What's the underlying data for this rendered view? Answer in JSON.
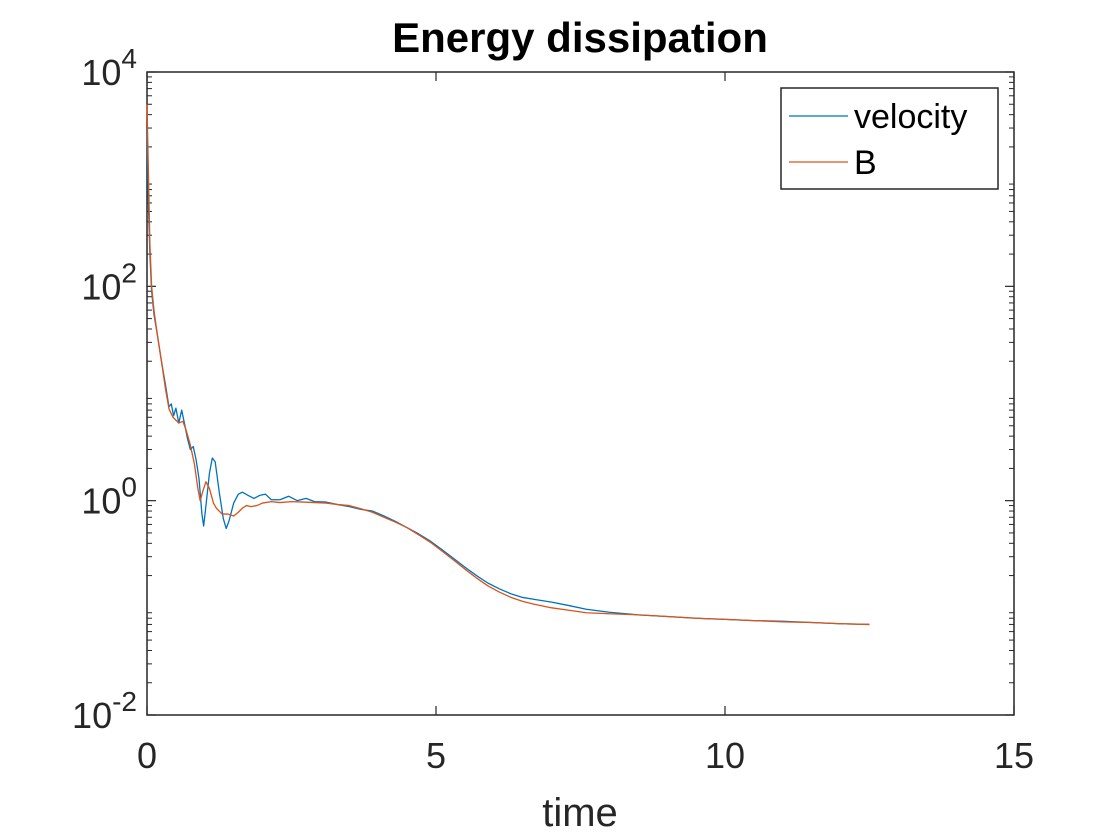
{
  "chart_data": {
    "type": "line",
    "title": "Energy dissipation",
    "xlabel": "time",
    "ylabel": "",
    "xlim": [
      0,
      15
    ],
    "ylim": [
      0.01,
      10000
    ],
    "yscale": "log",
    "grid": false,
    "legend_position": "top-right",
    "x_ticks": [
      {
        "value": 0,
        "label": "0"
      },
      {
        "value": 5,
        "label": "5"
      },
      {
        "value": 10,
        "label": "10"
      },
      {
        "value": 15,
        "label": "15"
      }
    ],
    "y_ticks": [
      {
        "value": 0.01,
        "base": "10",
        "exp": "-2"
      },
      {
        "value": 1,
        "base": "10",
        "exp": "0"
      },
      {
        "value": 100,
        "base": "10",
        "exp": "2"
      },
      {
        "value": 10000,
        "base": "10",
        "exp": "4"
      }
    ],
    "series": [
      {
        "name": "velocity",
        "color": "#0072BD",
        "points": [
          [
            0,
            3000
          ],
          [
            0.02,
            700
          ],
          [
            0.05,
            200
          ],
          [
            0.08,
            90
          ],
          [
            0.12,
            55
          ],
          [
            0.18,
            35
          ],
          [
            0.25,
            20
          ],
          [
            0.32,
            12
          ],
          [
            0.38,
            7.5
          ],
          [
            0.42,
            8
          ],
          [
            0.46,
            6.2
          ],
          [
            0.5,
            7.3
          ],
          [
            0.55,
            5.3
          ],
          [
            0.6,
            7
          ],
          [
            0.65,
            5.2
          ],
          [
            0.7,
            3.8
          ],
          [
            0.75,
            3.0
          ],
          [
            0.8,
            3.2
          ],
          [
            0.85,
            2.4
          ],
          [
            0.9,
            1.6
          ],
          [
            0.95,
            0.75
          ],
          [
            0.98,
            0.58
          ],
          [
            1.02,
            0.9
          ],
          [
            1.08,
            1.8
          ],
          [
            1.13,
            2.5
          ],
          [
            1.18,
            2.3
          ],
          [
            1.25,
            1.2
          ],
          [
            1.32,
            0.68
          ],
          [
            1.37,
            0.55
          ],
          [
            1.42,
            0.65
          ],
          [
            1.5,
            0.95
          ],
          [
            1.58,
            1.15
          ],
          [
            1.65,
            1.2
          ],
          [
            1.75,
            1.12
          ],
          [
            1.85,
            1.05
          ],
          [
            1.95,
            1.12
          ],
          [
            2.05,
            1.15
          ],
          [
            2.15,
            1.02
          ],
          [
            2.3,
            1.02
          ],
          [
            2.45,
            1.1
          ],
          [
            2.6,
            1.0
          ],
          [
            2.75,
            1.05
          ],
          [
            2.9,
            0.98
          ],
          [
            3.1,
            0.97
          ],
          [
            3.3,
            0.92
          ],
          [
            3.5,
            0.88
          ],
          [
            3.7,
            0.83
          ],
          [
            3.9,
            0.8
          ],
          [
            4.1,
            0.72
          ],
          [
            4.3,
            0.64
          ],
          [
            4.5,
            0.56
          ],
          [
            4.7,
            0.49
          ],
          [
            4.9,
            0.42
          ],
          [
            5.1,
            0.35
          ],
          [
            5.3,
            0.29
          ],
          [
            5.5,
            0.24
          ],
          [
            5.7,
            0.2
          ],
          [
            5.9,
            0.17
          ],
          [
            6.1,
            0.15
          ],
          [
            6.3,
            0.135
          ],
          [
            6.5,
            0.125
          ],
          [
            6.7,
            0.12
          ],
          [
            7.0,
            0.113
          ],
          [
            7.3,
            0.105
          ],
          [
            7.6,
            0.097
          ],
          [
            8.0,
            0.091
          ],
          [
            8.5,
            0.086
          ],
          [
            9.0,
            0.083
          ],
          [
            9.5,
            0.08
          ],
          [
            10.0,
            0.078
          ],
          [
            10.5,
            0.076
          ],
          [
            11.0,
            0.075
          ],
          [
            11.5,
            0.073
          ],
          [
            12.0,
            0.071
          ],
          [
            12.5,
            0.07
          ]
        ]
      },
      {
        "name": "B",
        "color": "#D95319",
        "points": [
          [
            0,
            5000
          ],
          [
            0.02,
            1500
          ],
          [
            0.05,
            250
          ],
          [
            0.08,
            100
          ],
          [
            0.12,
            60
          ],
          [
            0.18,
            35
          ],
          [
            0.25,
            20
          ],
          [
            0.32,
            11
          ],
          [
            0.38,
            7.2
          ],
          [
            0.45,
            6.0
          ],
          [
            0.55,
            5.3
          ],
          [
            0.62,
            5.5
          ],
          [
            0.68,
            4.5
          ],
          [
            0.75,
            3.3
          ],
          [
            0.82,
            2.2
          ],
          [
            0.88,
            1.3
          ],
          [
            0.92,
            1.0
          ],
          [
            0.97,
            1.25
          ],
          [
            1.02,
            1.5
          ],
          [
            1.08,
            1.3
          ],
          [
            1.15,
            0.95
          ],
          [
            1.2,
            0.85
          ],
          [
            1.3,
            0.75
          ],
          [
            1.4,
            0.75
          ],
          [
            1.5,
            0.72
          ],
          [
            1.58,
            0.78
          ],
          [
            1.65,
            0.85
          ],
          [
            1.72,
            0.9
          ],
          [
            1.8,
            0.88
          ],
          [
            1.9,
            0.9
          ],
          [
            2.0,
            0.95
          ],
          [
            2.15,
            0.98
          ],
          [
            2.3,
            0.96
          ],
          [
            2.5,
            0.98
          ],
          [
            2.7,
            0.97
          ],
          [
            2.9,
            0.96
          ],
          [
            3.1,
            0.95
          ],
          [
            3.3,
            0.92
          ],
          [
            3.5,
            0.9
          ],
          [
            3.7,
            0.84
          ],
          [
            3.9,
            0.78
          ],
          [
            4.1,
            0.7
          ],
          [
            4.3,
            0.63
          ],
          [
            4.5,
            0.56
          ],
          [
            4.7,
            0.48
          ],
          [
            4.9,
            0.41
          ],
          [
            5.1,
            0.34
          ],
          [
            5.3,
            0.28
          ],
          [
            5.5,
            0.23
          ],
          [
            5.7,
            0.19
          ],
          [
            5.9,
            0.16
          ],
          [
            6.1,
            0.14
          ],
          [
            6.3,
            0.125
          ],
          [
            6.5,
            0.115
          ],
          [
            6.7,
            0.108
          ],
          [
            7.0,
            0.1
          ],
          [
            7.3,
            0.095
          ],
          [
            7.6,
            0.09
          ],
          [
            8.0,
            0.088
          ],
          [
            8.5,
            0.086
          ],
          [
            9.0,
            0.083
          ],
          [
            9.5,
            0.08
          ],
          [
            10.0,
            0.078
          ],
          [
            10.5,
            0.076
          ],
          [
            11.0,
            0.074
          ],
          [
            11.5,
            0.073
          ],
          [
            12.0,
            0.071
          ],
          [
            12.5,
            0.07
          ]
        ]
      }
    ]
  }
}
